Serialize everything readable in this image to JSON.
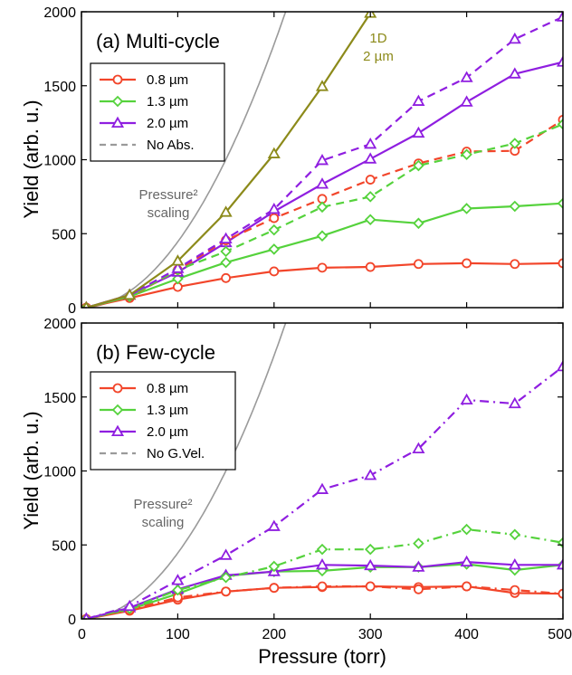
{
  "chart_data": [
    {
      "type": "line",
      "title": "(a) Multi-cycle",
      "xlabel": "",
      "ylabel": "Yield (arb. u.)",
      "xlim": [
        0,
        500
      ],
      "ylim": [
        0,
        2000
      ],
      "x_ticks": [
        "0",
        "100",
        "200",
        "300",
        "400",
        "500"
      ],
      "y_ticks": [
        "0",
        "500",
        "1000",
        "1500",
        "2000"
      ],
      "grid": false,
      "legend_position": "top-left",
      "legend": [
        "0.8 µm",
        "1.3 µm",
        "2.0 µm",
        "No Abs."
      ],
      "dashed_legend_index": 3,
      "colors": {
        "red": "#f2452a",
        "green": "#55d23c",
        "purple": "#8f1ee0",
        "olive": "#8c8a1a",
        "gray": "#9a9a9a"
      },
      "annotations": [
        {
          "lines": [
            "Pressure²",
            "scaling"
          ],
          "color": "#666666"
        },
        {
          "lines": [
            "1D",
            "2 µm"
          ],
          "color": "#8c8a1a"
        }
      ],
      "scaling_curve": {
        "name": "Pressure² scaling",
        "coefficient": 0.0445,
        "x_max": 212,
        "color": "#9a9a9a"
      },
      "series": [
        {
          "name": "0.8 µm",
          "style": "solid",
          "marker": "circle",
          "color": "#f2452a",
          "x": [
            5,
            50,
            100,
            150,
            200,
            250,
            300,
            350,
            400,
            450,
            500
          ],
          "y": [
            0,
            65,
            140,
            200,
            245,
            270,
            275,
            295,
            300,
            295,
            300
          ]
        },
        {
          "name": "1.3 µm",
          "style": "solid",
          "marker": "diamond",
          "color": "#55d23c",
          "x": [
            5,
            50,
            100,
            150,
            200,
            250,
            300,
            350,
            400,
            450,
            500
          ],
          "y": [
            0,
            75,
            195,
            305,
            395,
            485,
            595,
            570,
            670,
            685,
            705
          ]
        },
        {
          "name": "2.0 µm",
          "style": "solid",
          "marker": "triangle",
          "color": "#8f1ee0",
          "x": [
            5,
            50,
            100,
            150,
            200,
            250,
            300,
            350,
            400,
            450,
            500
          ],
          "y": [
            0,
            85,
            240,
            440,
            650,
            835,
            1005,
            1180,
            1390,
            1580,
            1660
          ]
        },
        {
          "style": "dashed",
          "marker": "circle",
          "color": "#f2452a",
          "x": [
            5,
            50,
            100,
            150,
            200,
            250,
            300,
            350,
            400,
            450,
            500
          ],
          "y": [
            0,
            70,
            255,
            455,
            605,
            735,
            865,
            975,
            1055,
            1060,
            1270
          ]
        },
        {
          "style": "dashed",
          "marker": "diamond",
          "color": "#55d23c",
          "x": [
            5,
            50,
            100,
            150,
            200,
            250,
            300,
            350,
            400,
            450,
            500
          ],
          "y": [
            0,
            75,
            255,
            380,
            525,
            680,
            750,
            960,
            1035,
            1110,
            1240
          ]
        },
        {
          "style": "dashed",
          "marker": "triangle",
          "color": "#8f1ee0",
          "x": [
            5,
            50,
            100,
            150,
            200,
            250,
            300,
            350,
            400,
            450,
            500
          ],
          "y": [
            0,
            85,
            265,
            465,
            665,
            995,
            1105,
            1395,
            1555,
            1815,
            1965
          ]
        },
        {
          "style": "solid",
          "marker": "triangle",
          "color": "#8c8a1a",
          "x": [
            5,
            50,
            100,
            150,
            200,
            250,
            300
          ],
          "y": [
            0,
            85,
            315,
            645,
            1040,
            1495,
            1990
          ]
        }
      ]
    },
    {
      "type": "line",
      "title": "(b) Few-cycle",
      "xlabel": "Pressure (torr)",
      "ylabel": "Yield (arb. u.)",
      "xlim": [
        0,
        500
      ],
      "ylim": [
        0,
        2000
      ],
      "x_ticks": [
        "0",
        "100",
        "200",
        "300",
        "400",
        "500"
      ],
      "y_ticks": [
        "0",
        "500",
        "1000",
        "1500",
        "2000"
      ],
      "grid": false,
      "legend_position": "top-left",
      "legend": [
        "0.8 µm",
        "1.3 µm",
        "2.0 µm",
        "No G.Vel."
      ],
      "dashed_legend_index": 3,
      "colors": {
        "red": "#f2452a",
        "green": "#55d23c",
        "purple": "#8f1ee0",
        "gray": "#9a9a9a"
      },
      "annotations": [
        {
          "lines": [
            "Pressure²",
            "scaling"
          ],
          "color": "#666666"
        }
      ],
      "scaling_curve": {
        "name": "Pressure² scaling",
        "coefficient": 0.0445,
        "x_max": 225,
        "color": "#9a9a9a"
      },
      "series": [
        {
          "name": "0.8 µm",
          "style": "solid",
          "marker": "circle",
          "color": "#f2452a",
          "x": [
            5,
            50,
            100,
            150,
            200,
            250,
            300,
            350,
            400,
            450,
            500
          ],
          "y": [
            0,
            55,
            130,
            185,
            210,
            215,
            220,
            215,
            220,
            175,
            170
          ]
        },
        {
          "name": "1.3 µm",
          "style": "solid",
          "marker": "diamond",
          "color": "#55d23c",
          "x": [
            5,
            50,
            100,
            150,
            200,
            250,
            300,
            350,
            400,
            450,
            500
          ],
          "y": [
            0,
            65,
            170,
            290,
            320,
            325,
            350,
            350,
            370,
            330,
            365
          ]
        },
        {
          "name": "2.0 µm",
          "style": "solid",
          "marker": "triangle",
          "color": "#8f1ee0",
          "x": [
            5,
            50,
            100,
            150,
            200,
            250,
            300,
            350,
            400,
            450,
            500
          ],
          "y": [
            0,
            75,
            200,
            295,
            320,
            365,
            360,
            350,
            385,
            365,
            365
          ]
        },
        {
          "style": "dashdot",
          "marker": "circle",
          "color": "#f2452a",
          "x": [
            5,
            50,
            100,
            150,
            200,
            250,
            300,
            350,
            400,
            450,
            500
          ],
          "y": [
            0,
            60,
            145,
            185,
            210,
            220,
            220,
            200,
            220,
            195,
            170
          ]
        },
        {
          "style": "dashdot",
          "marker": "diamond",
          "color": "#55d23c",
          "x": [
            5,
            50,
            100,
            150,
            200,
            250,
            300,
            350,
            400,
            450,
            500
          ],
          "y": [
            0,
            70,
            195,
            280,
            355,
            470,
            470,
            510,
            605,
            570,
            515
          ]
        },
        {
          "style": "dashdot",
          "marker": "triangle",
          "color": "#8f1ee0",
          "x": [
            5,
            50,
            100,
            150,
            200,
            250,
            300,
            350,
            400,
            450,
            500
          ],
          "y": [
            0,
            85,
            260,
            430,
            625,
            875,
            970,
            1150,
            1480,
            1455,
            1705
          ]
        }
      ]
    }
  ]
}
